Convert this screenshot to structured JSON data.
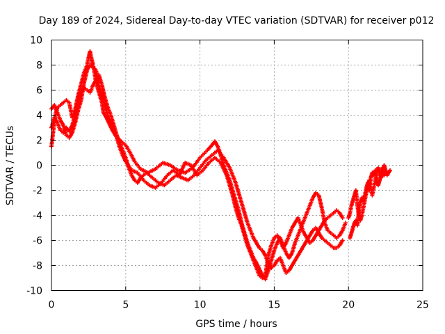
{
  "chart_data": {
    "type": "scatter",
    "title": "Day 189 of 2024, Sidereal Day-to-day VTEC variation (SDTVAR) for receiver p012",
    "xlabel": "GPS time / hours",
    "ylabel": "SDTVAR / TECUs",
    "xlim": [
      0,
      25
    ],
    "ylim": [
      -10,
      10
    ],
    "xticks": [
      "0",
      "5",
      "10",
      "15",
      "20",
      "25"
    ],
    "yticks": [
      "-10",
      "-8",
      "-6",
      "-4",
      "-2",
      "0",
      "2",
      "4",
      "6",
      "8",
      "10"
    ],
    "grid": true,
    "marker": "+",
    "color": "#ff0000",
    "series": [
      {
        "values": [
          [
            0.0,
            1.5
          ],
          [
            0.1,
            2.5
          ],
          [
            0.2,
            3.5
          ],
          [
            0.3,
            4.2
          ],
          [
            0.4,
            4.6
          ],
          [
            0.6,
            4.8
          ],
          [
            0.8,
            5.0
          ],
          [
            1.0,
            5.2
          ],
          [
            1.2,
            5.0
          ],
          [
            1.3,
            4.4
          ],
          [
            1.4,
            3.8
          ],
          [
            1.6,
            4.5
          ],
          [
            1.8,
            5.6
          ],
          [
            2.0,
            6.5
          ],
          [
            2.2,
            7.4
          ],
          [
            2.4,
            8.0
          ],
          [
            2.5,
            8.6
          ],
          [
            2.6,
            9.1
          ],
          [
            2.7,
            8.5
          ],
          [
            2.8,
            8.0
          ],
          [
            2.9,
            7.4
          ],
          [
            3.0,
            6.6
          ],
          [
            3.2,
            5.8
          ],
          [
            3.4,
            5.0
          ],
          [
            3.5,
            4.2
          ],
          [
            3.7,
            3.8
          ],
          [
            3.9,
            3.3
          ],
          [
            4.1,
            2.8
          ],
          [
            4.3,
            2.4
          ],
          [
            4.6,
            2.0
          ],
          [
            5.0,
            1.6
          ],
          [
            5.3,
            1.0
          ],
          [
            5.6,
            0.3
          ],
          [
            6.0,
            -0.3
          ],
          [
            6.5,
            -0.6
          ],
          [
            7.0,
            -0.3
          ],
          [
            7.5,
            0.2
          ],
          [
            8.0,
            0.0
          ],
          [
            8.5,
            -0.4
          ],
          [
            9.0,
            -0.6
          ],
          [
            9.5,
            -0.2
          ],
          [
            10.0,
            0.6
          ],
          [
            10.5,
            1.2
          ],
          [
            10.8,
            1.6
          ],
          [
            11.0,
            1.9
          ],
          [
            11.2,
            1.5
          ],
          [
            11.4,
            0.8
          ],
          [
            11.6,
            0.0
          ],
          [
            11.8,
            -0.6
          ],
          [
            12.0,
            -1.2
          ],
          [
            12.2,
            -2.0
          ],
          [
            12.4,
            -2.8
          ],
          [
            12.6,
            -3.6
          ],
          [
            12.8,
            -4.6
          ],
          [
            13.0,
            -5.4
          ],
          [
            13.2,
            -6.2
          ],
          [
            13.4,
            -6.8
          ],
          [
            13.6,
            -7.4
          ],
          [
            13.8,
            -7.8
          ],
          [
            14.0,
            -8.3
          ],
          [
            14.2,
            -8.8
          ],
          [
            14.4,
            -9.1
          ],
          [
            14.6,
            -8.4
          ],
          [
            14.8,
            -7.6
          ],
          [
            15.0,
            -6.8
          ],
          [
            15.2,
            -6.2
          ],
          [
            15.4,
            -5.8
          ],
          [
            15.6,
            -6.4
          ],
          [
            15.8,
            -7.0
          ],
          [
            16.0,
            -7.4
          ],
          [
            16.2,
            -7.0
          ],
          [
            16.4,
            -6.2
          ],
          [
            16.6,
            -5.6
          ],
          [
            16.8,
            -5.0
          ],
          [
            17.0,
            -4.4
          ],
          [
            17.2,
            -3.8
          ],
          [
            17.4,
            -3.2
          ],
          [
            17.6,
            -2.6
          ],
          [
            17.8,
            -2.2
          ],
          [
            18.0,
            -2.4
          ],
          [
            18.2,
            -3.4
          ],
          [
            18.4,
            -4.6
          ],
          [
            18.6,
            -5.2
          ],
          [
            18.8,
            -5.4
          ],
          [
            19.0,
            -5.6
          ],
          [
            19.2,
            -5.8
          ],
          [
            19.4,
            -5.6
          ],
          [
            19.6,
            -5.2
          ],
          [
            19.8,
            -4.6
          ]
        ]
      },
      {
        "values": [
          [
            0.0,
            3.0
          ],
          [
            0.2,
            3.8
          ],
          [
            0.4,
            3.4
          ],
          [
            0.6,
            2.8
          ],
          [
            0.8,
            2.6
          ],
          [
            1.0,
            3.0
          ],
          [
            1.2,
            2.7
          ],
          [
            1.4,
            3.2
          ],
          [
            1.6,
            4.0
          ],
          [
            1.8,
            5.0
          ],
          [
            2.0,
            5.8
          ],
          [
            2.2,
            6.2
          ],
          [
            2.4,
            6.0
          ],
          [
            2.6,
            5.8
          ],
          [
            2.8,
            6.4
          ],
          [
            3.0,
            6.8
          ],
          [
            3.2,
            7.2
          ],
          [
            3.4,
            6.4
          ],
          [
            3.6,
            5.4
          ],
          [
            3.8,
            4.6
          ],
          [
            4.0,
            4.0
          ],
          [
            4.2,
            3.2
          ],
          [
            4.4,
            2.4
          ],
          [
            4.6,
            1.8
          ],
          [
            4.8,
            1.2
          ],
          [
            5.0,
            0.6
          ],
          [
            5.2,
            -0.2
          ],
          [
            5.4,
            -0.8
          ],
          [
            5.6,
            -1.2
          ],
          [
            5.8,
            -1.4
          ],
          [
            6.0,
            -1.0
          ],
          [
            6.4,
            -0.6
          ],
          [
            6.8,
            -1.0
          ],
          [
            7.2,
            -1.4
          ],
          [
            7.6,
            -1.6
          ],
          [
            8.0,
            -1.2
          ],
          [
            8.4,
            -0.8
          ],
          [
            8.8,
            -1.0
          ],
          [
            9.2,
            -1.2
          ],
          [
            9.6,
            -0.8
          ],
          [
            10.0,
            -0.2
          ],
          [
            10.4,
            0.4
          ],
          [
            10.8,
            0.8
          ],
          [
            11.2,
            1.2
          ],
          [
            11.6,
            0.6
          ],
          [
            12.0,
            -0.2
          ],
          [
            12.2,
            -0.8
          ],
          [
            12.4,
            -1.4
          ],
          [
            12.6,
            -2.2
          ],
          [
            12.8,
            -3.0
          ],
          [
            13.0,
            -3.8
          ],
          [
            13.2,
            -4.6
          ],
          [
            13.4,
            -5.2
          ],
          [
            13.6,
            -5.8
          ],
          [
            13.8,
            -6.2
          ],
          [
            14.0,
            -6.6
          ],
          [
            14.2,
            -6.8
          ],
          [
            14.4,
            -7.2
          ],
          [
            14.6,
            -7.8
          ],
          [
            14.8,
            -8.2
          ],
          [
            15.0,
            -8.0
          ],
          [
            15.2,
            -7.6
          ],
          [
            15.4,
            -7.4
          ],
          [
            15.6,
            -8.0
          ],
          [
            15.8,
            -8.6
          ],
          [
            16.0,
            -8.4
          ],
          [
            16.2,
            -8.0
          ],
          [
            16.4,
            -7.6
          ],
          [
            16.6,
            -7.2
          ],
          [
            16.8,
            -6.8
          ],
          [
            17.0,
            -6.4
          ],
          [
            17.2,
            -6.0
          ],
          [
            17.4,
            -5.6
          ],
          [
            17.6,
            -5.2
          ],
          [
            17.8,
            -5.0
          ],
          [
            18.0,
            -5.4
          ],
          [
            18.2,
            -5.8
          ],
          [
            18.4,
            -6.0
          ],
          [
            18.6,
            -6.2
          ],
          [
            18.8,
            -6.4
          ],
          [
            19.0,
            -6.6
          ],
          [
            19.2,
            -6.6
          ],
          [
            19.4,
            -6.4
          ],
          [
            19.6,
            -6.0
          ]
        ]
      },
      {
        "values": [
          [
            0.0,
            4.5
          ],
          [
            0.2,
            4.8
          ],
          [
            0.4,
            4.2
          ],
          [
            0.6,
            3.6
          ],
          [
            0.8,
            3.2
          ],
          [
            1.0,
            2.4
          ],
          [
            1.2,
            2.2
          ],
          [
            1.4,
            2.6
          ],
          [
            1.6,
            3.4
          ],
          [
            1.8,
            4.4
          ],
          [
            2.0,
            5.2
          ],
          [
            2.2,
            6.6
          ],
          [
            2.4,
            7.6
          ],
          [
            2.6,
            8.0
          ],
          [
            2.8,
            7.8
          ],
          [
            3.0,
            7.6
          ],
          [
            3.2,
            6.4
          ],
          [
            3.4,
            5.6
          ],
          [
            3.6,
            4.8
          ],
          [
            3.8,
            4.0
          ],
          [
            4.0,
            3.4
          ],
          [
            4.2,
            2.8
          ],
          [
            4.4,
            2.2
          ],
          [
            4.6,
            1.4
          ],
          [
            4.8,
            0.8
          ],
          [
            5.0,
            0.3
          ],
          [
            5.4,
            -0.4
          ],
          [
            5.8,
            -0.6
          ],
          [
            6.2,
            -1.2
          ],
          [
            6.6,
            -1.6
          ],
          [
            7.0,
            -1.8
          ],
          [
            7.4,
            -1.4
          ],
          [
            7.8,
            -0.8
          ],
          [
            8.2,
            -0.4
          ],
          [
            8.6,
            -0.8
          ],
          [
            9.0,
            0.2
          ],
          [
            9.4,
            0.0
          ],
          [
            9.8,
            -0.8
          ],
          [
            10.2,
            -0.4
          ],
          [
            10.6,
            0.2
          ],
          [
            11.0,
            0.6
          ],
          [
            11.4,
            0.2
          ],
          [
            11.8,
            -0.8
          ],
          [
            12.0,
            -1.6
          ],
          [
            12.2,
            -2.4
          ],
          [
            12.4,
            -3.4
          ],
          [
            12.6,
            -4.2
          ],
          [
            12.8,
            -4.8
          ],
          [
            13.0,
            -5.6
          ],
          [
            13.2,
            -6.4
          ],
          [
            13.4,
            -7.0
          ],
          [
            13.6,
            -7.6
          ],
          [
            13.8,
            -8.2
          ],
          [
            14.0,
            -8.8
          ],
          [
            14.2,
            -9.0
          ],
          [
            14.4,
            -8.8
          ],
          [
            14.6,
            -7.2
          ],
          [
            14.8,
            -6.4
          ],
          [
            15.0,
            -5.8
          ],
          [
            15.2,
            -5.6
          ],
          [
            15.4,
            -6.0
          ],
          [
            15.6,
            -6.6
          ],
          [
            15.8,
            -6.2
          ],
          [
            16.0,
            -5.6
          ],
          [
            16.2,
            -5.0
          ],
          [
            16.4,
            -4.6
          ],
          [
            16.6,
            -4.2
          ],
          [
            16.8,
            -4.8
          ],
          [
            17.0,
            -5.4
          ],
          [
            17.2,
            -5.8
          ],
          [
            17.4,
            -6.2
          ],
          [
            17.6,
            -6.0
          ],
          [
            17.8,
            -5.6
          ],
          [
            18.0,
            -5.2
          ],
          [
            18.2,
            -4.8
          ],
          [
            18.4,
            -4.4
          ],
          [
            18.6,
            -4.2
          ],
          [
            18.8,
            -4.0
          ],
          [
            19.0,
            -3.8
          ],
          [
            19.2,
            -3.6
          ],
          [
            19.4,
            -3.8
          ],
          [
            19.6,
            -4.2
          ]
        ]
      },
      {
        "values": [
          [
            20.0,
            -4.2
          ],
          [
            20.1,
            -3.8
          ],
          [
            20.2,
            -3.2
          ],
          [
            20.3,
            -2.8
          ],
          [
            20.4,
            -2.4
          ],
          [
            20.5,
            -2.0
          ],
          [
            20.6,
            -3.2
          ],
          [
            20.7,
            -4.0
          ],
          [
            20.8,
            -4.4
          ],
          [
            20.9,
            -4.0
          ],
          [
            21.0,
            -3.4
          ],
          [
            21.1,
            -2.8
          ],
          [
            21.2,
            -2.2
          ],
          [
            21.3,
            -1.6
          ],
          [
            21.4,
            -1.2
          ],
          [
            21.5,
            -1.8
          ],
          [
            21.6,
            -2.4
          ],
          [
            21.7,
            -1.8
          ],
          [
            21.8,
            -1.2
          ],
          [
            21.9,
            -0.6
          ],
          [
            22.0,
            -0.2
          ],
          [
            22.1,
            -0.6
          ],
          [
            22.2,
            -1.0
          ],
          [
            22.3,
            -0.4
          ],
          [
            22.4,
            0.0
          ],
          [
            22.5,
            -0.4
          ],
          [
            22.6,
            -0.8
          ],
          [
            22.7,
            -0.6
          ],
          [
            22.8,
            -0.4
          ],
          [
            20.1,
            -5.8
          ],
          [
            20.2,
            -5.4
          ],
          [
            20.3,
            -5.0
          ],
          [
            20.4,
            -4.6
          ],
          [
            20.5,
            -4.4
          ],
          [
            20.6,
            -4.8
          ],
          [
            20.7,
            -3.6
          ],
          [
            20.8,
            -3.0
          ],
          [
            20.9,
            -2.6
          ],
          [
            21.0,
            -2.8
          ],
          [
            21.1,
            -2.4
          ],
          [
            21.2,
            -1.8
          ],
          [
            21.3,
            -1.4
          ],
          [
            21.4,
            -2.0
          ],
          [
            21.5,
            -1.0
          ],
          [
            21.6,
            -0.6
          ],
          [
            21.7,
            -0.8
          ],
          [
            21.8,
            -0.4
          ],
          [
            21.9,
            -1.2
          ],
          [
            22.0,
            -1.6
          ],
          [
            22.1,
            -1.2
          ],
          [
            22.2,
            -0.6
          ],
          [
            22.3,
            -0.2
          ],
          [
            22.4,
            -0.8
          ],
          [
            22.5,
            -0.6
          ]
        ]
      }
    ]
  }
}
